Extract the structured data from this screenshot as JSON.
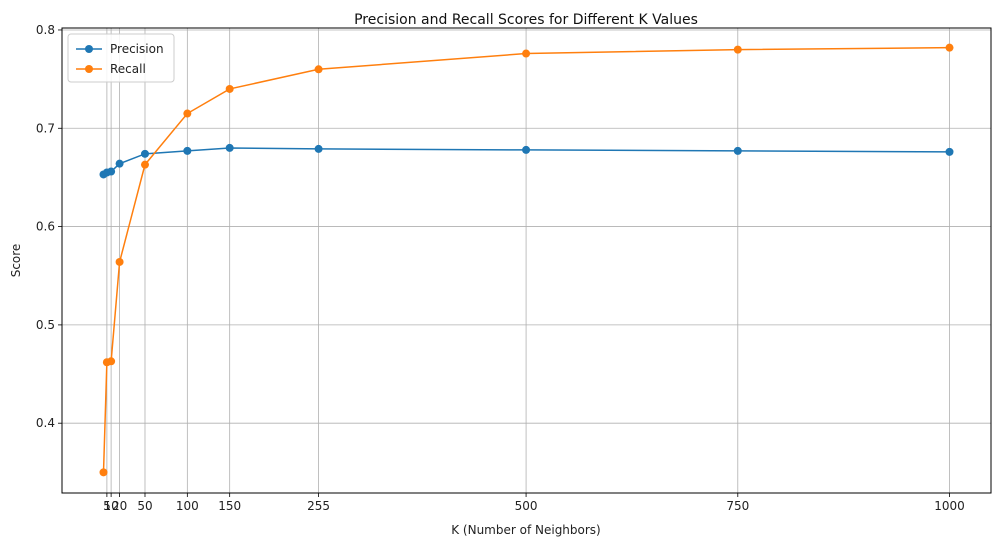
{
  "chart_data": {
    "type": "line",
    "title": "Precision and Recall Scores for Different K Values",
    "xlabel": "K (Number of Neighbors)",
    "ylabel": "Score",
    "x": [
      1,
      5,
      10,
      20,
      50,
      100,
      150,
      255,
      500,
      750,
      1000
    ],
    "xticks": [
      5,
      10,
      20,
      50,
      100,
      150,
      255,
      500,
      750,
      1000
    ],
    "xtick_labels": [
      "5",
      "10",
      "20",
      "50",
      "100",
      "150",
      "255",
      "500",
      "750",
      "1000"
    ],
    "yticks": [
      0.4,
      0.5,
      0.6,
      0.7,
      0.8
    ],
    "ytick_labels": [
      "0.4",
      "0.5",
      "0.6",
      "0.7",
      "0.8"
    ],
    "xlim": [
      -48,
      1049
    ],
    "ylim": [
      0.329,
      0.802
    ],
    "grid": true,
    "legend_position": "top-left",
    "series": [
      {
        "name": "Precision",
        "color": "#1f77b4",
        "values": [
          0.653,
          0.655,
          0.656,
          0.664,
          0.674,
          0.677,
          0.68,
          0.679,
          0.678,
          0.677,
          0.676
        ]
      },
      {
        "name": "Recall",
        "color": "#ff7f0e",
        "values": [
          0.35,
          0.462,
          0.463,
          0.564,
          0.663,
          0.715,
          0.74,
          0.76,
          0.776,
          0.78,
          0.782
        ]
      }
    ]
  }
}
